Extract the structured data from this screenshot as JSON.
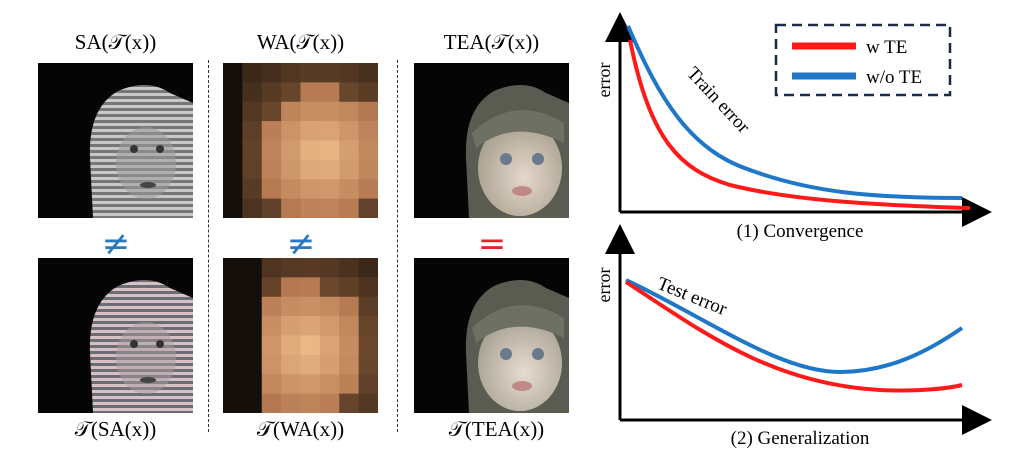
{
  "columns": [
    {
      "top_caption": "SA(𝒯(x))",
      "bottom_caption": "𝒯(SA(x))",
      "relation": "≠",
      "relation_color": "#2a78c2"
    },
    {
      "top_caption": "WA(𝒯(x))",
      "bottom_caption": "𝒯(WA(x))",
      "relation": "≠",
      "relation_color": "#2a78c2"
    },
    {
      "top_caption": "TEA(𝒯(x))",
      "bottom_caption": "𝒯(TEA(x))",
      "relation": "=",
      "relation_color": "#e8262a"
    }
  ],
  "legend": {
    "items": [
      {
        "label": "w TE",
        "color": "#ff1a1a"
      },
      {
        "label": "w/o TE",
        "color": "#1f77c8"
      }
    ]
  },
  "charts": {
    "top": {
      "ylabel": "error",
      "annotation": "Train error",
      "caption": "(1) Convergence"
    },
    "bottom": {
      "ylabel": "error",
      "annotation": "Test error",
      "caption": "(2) Generalization"
    }
  }
}
